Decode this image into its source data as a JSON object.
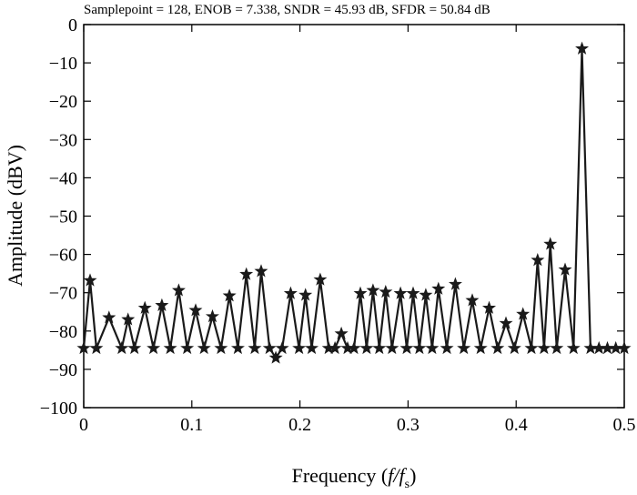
{
  "chart_data": {
    "type": "line",
    "title": "Samplepoint = 128, ENOB = 7.338, SNDR = 45.93 dB, SFDR = 50.84 dB",
    "xlabel": "Frequency (f/f_s)",
    "xlabel_parts": {
      "prefix": "Frequency (",
      "f": "f",
      "slash": "/",
      "f2": "f",
      "sub": "s",
      "suffix": ")"
    },
    "ylabel": "Amplitude (dBV)",
    "xlim": [
      0,
      0.5
    ],
    "ylim": [
      -100,
      0
    ],
    "xticks": [
      0,
      0.1,
      0.2,
      0.3,
      0.4,
      0.5
    ],
    "xtick_labels": [
      "0",
      "0.1",
      "0.2",
      "0.3",
      "0.4",
      "0.5"
    ],
    "yticks": [
      0,
      -10,
      -20,
      -30,
      -40,
      -50,
      -60,
      -70,
      -80,
      -90,
      -100
    ],
    "ytick_labels": [
      "0",
      "−10",
      "−20",
      "−30",
      "−40",
      "−50",
      "−60",
      "−70",
      "−80",
      "−90",
      "−100"
    ],
    "grid": false,
    "marker": "star",
    "series": [
      {
        "x": [
          0,
          0.0059,
          0.0117,
          0.0234,
          0.0352,
          0.041,
          0.0469,
          0.0566,
          0.0645,
          0.0723,
          0.0801,
          0.0879,
          0.0957,
          0.1035,
          0.1113,
          0.1191,
          0.127,
          0.1348,
          0.1426,
          0.1504,
          0.1582,
          0.1641,
          0.1719,
          0.1777,
          0.1836,
          0.1914,
          0.1992,
          0.2051,
          0.2109,
          0.2188,
          0.2266,
          0.2324,
          0.2383,
          0.2441,
          0.25,
          0.2559,
          0.2617,
          0.2676,
          0.2734,
          0.2793,
          0.2852,
          0.293,
          0.2988,
          0.3047,
          0.3105,
          0.3164,
          0.3223,
          0.3281,
          0.3359,
          0.3438,
          0.3516,
          0.3594,
          0.3672,
          0.375,
          0.3828,
          0.3906,
          0.3984,
          0.4063,
          0.4141,
          0.4199,
          0.4258,
          0.4316,
          0.4375,
          0.4453,
          0.4531,
          0.4609,
          0.4688,
          0.4766,
          0.4844,
          0.4922,
          0.5
        ],
        "y": [
          -84.5,
          -66.8,
          -84.5,
          -76.5,
          -84.5,
          -77.0,
          -84.5,
          -74.0,
          -84.5,
          -73.3,
          -84.5,
          -69.4,
          -84.5,
          -74.6,
          -84.5,
          -76.2,
          -84.5,
          -70.8,
          -84.5,
          -65.2,
          -84.5,
          -64.4,
          -84.5,
          -87.0,
          -84.5,
          -70.2,
          -84.5,
          -70.6,
          -84.5,
          -66.6,
          -84.5,
          -84.5,
          -80.7,
          -84.5,
          -84.5,
          -70.2,
          -84.5,
          -69.4,
          -84.5,
          -69.8,
          -84.5,
          -70.2,
          -84.5,
          -70.2,
          -84.5,
          -70.6,
          -84.5,
          -69.0,
          -84.5,
          -67.8,
          -84.5,
          -72.0,
          -84.5,
          -74.0,
          -84.5,
          -78.0,
          -84.5,
          -75.6,
          -84.5,
          -61.5,
          -84.5,
          -57.3,
          -84.5,
          -64.0,
          -84.5,
          -6.3,
          -84.5,
          -84.5,
          -84.5,
          -84.5,
          -84.5
        ]
      }
    ]
  }
}
